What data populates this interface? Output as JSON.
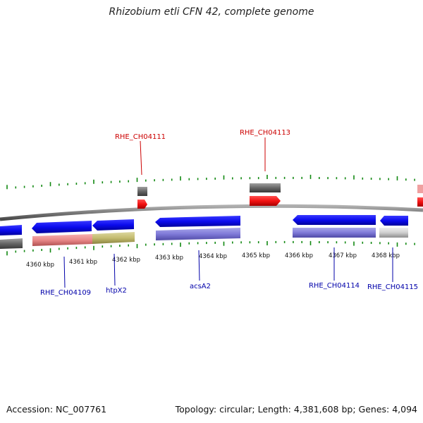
{
  "title": "Rhizobium etli CFN 42, complete genome",
  "footer": {
    "accession": "Accession: NC_007761",
    "summary": "Topology: circular; Length: 4,381,608 bp; Genes: 4,094"
  },
  "scale": {
    "ticks": [
      "4360 kbp",
      "4361 kbp",
      "4362 kbp",
      "4363 kbp",
      "4364 kbp",
      "4365 kbp",
      "4366 kbp",
      "4367 kbp",
      "4368 kbp"
    ]
  },
  "genes": {
    "forward": [
      "RHE_CH04111",
      "RHE_CH04113"
    ],
    "reverse": [
      "RHE_CH04109",
      "htpX2",
      "acsA2",
      "RHE_CH04114",
      "RHE_CH04115"
    ]
  },
  "colors": {
    "forward_gene": "#ee1111",
    "forward_label": "#cc0000",
    "reverse_gene": "#1111ee",
    "reverse_label": "#0000aa",
    "backbone": "#808080",
    "tick": "#118811"
  }
}
